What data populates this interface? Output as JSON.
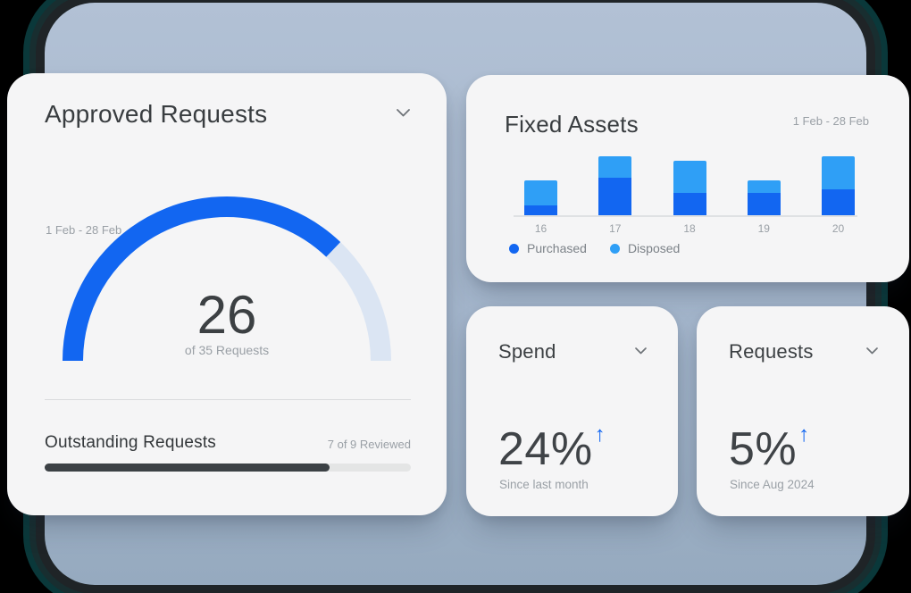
{
  "colors": {
    "primary_blue": "#1266f1",
    "light_blue": "#2f9ff6",
    "gauge_track": "#dbe5f3",
    "progress_fill": "#3c4145",
    "progress_track": "#e4e5e5",
    "panel_top": "#b2c1d5",
    "panel_bottom": "#96aabf",
    "card_bg": "#f5f5f6"
  },
  "approved_requests": {
    "title": "Approved Requests",
    "date_range": "1 Feb - 28 Feb",
    "gauge": {
      "value": 26,
      "total": 35,
      "value_label": "26",
      "caption": "of 35 Requests"
    },
    "outstanding": {
      "label": "Outstanding Requests",
      "status": "7 of 9 Reviewed",
      "reviewed": 7,
      "total": 9
    }
  },
  "fixed_assets": {
    "title": "Fixed Assets",
    "date_range": "1 Feb - 28 Feb",
    "chart_data": {
      "type": "bar",
      "stacked": true,
      "categories": [
        "16",
        "17",
        "18",
        "19",
        "20"
      ],
      "series": [
        {
          "name": "Purchased",
          "color": "#1266f1",
          "values": [
            11,
            42,
            25,
            25,
            29
          ]
        },
        {
          "name": "Disposed",
          "color": "#2f9ff6",
          "values": [
            28,
            24,
            36,
            14,
            37
          ]
        }
      ],
      "units": "relative-height-px",
      "ylim": [
        0,
        70
      ],
      "grid": false,
      "legend_position": "bottom-left",
      "xlabel": "",
      "ylabel": ""
    }
  },
  "spend": {
    "title": "Spend",
    "value": "24%",
    "trend": "up",
    "trend_icon": "↑",
    "caption": "Since last month"
  },
  "requests": {
    "title": "Requests",
    "value": "5%",
    "trend": "up",
    "trend_icon": "↑",
    "caption": "Since Aug 2024"
  }
}
